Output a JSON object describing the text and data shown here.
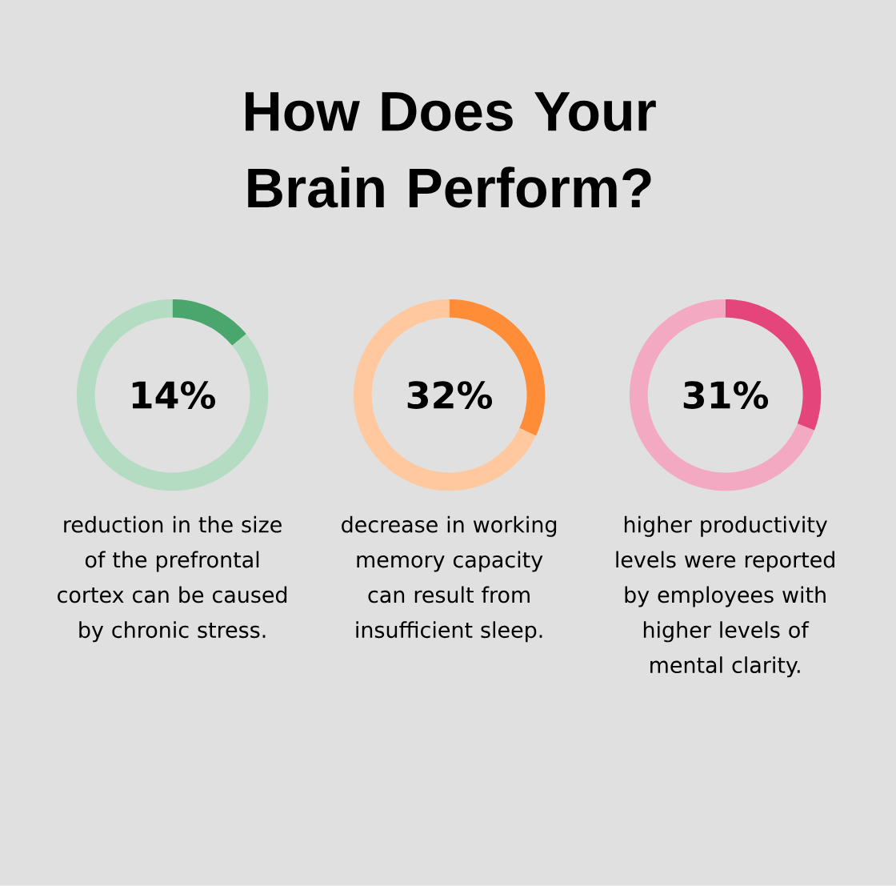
{
  "chart_data": [
    {
      "type": "donut",
      "categories": [
        null,
        null
      ],
      "values": [
        14,
        86
      ],
      "colors": [
        "#4aa66c",
        "#b3dcc3"
      ],
      "annotations": [
        "14%",
        "reduction in the size of the prefrontal cortex can be caused by chronic stress."
      ]
    },
    {
      "type": "donut",
      "title": "How Does Your Brain Perform?",
      "categories": [
        null,
        null
      ],
      "values": [
        32,
        68
      ],
      "colors": [
        "#ff8c37",
        "#ffc89e"
      ],
      "annotations": [
        "32%",
        "decrease in working memory capacity can result from insufficient sleep."
      ]
    },
    {
      "type": "donut",
      "categories": [
        null,
        null
      ],
      "values": [
        31,
        69
      ],
      "colors": [
        "#e4457a",
        "#f2a9c1"
      ],
      "annotations": [
        "31%",
        "higher productivity levels were reported by employees with higher levels of mental clarity."
      ]
    }
  ]
}
